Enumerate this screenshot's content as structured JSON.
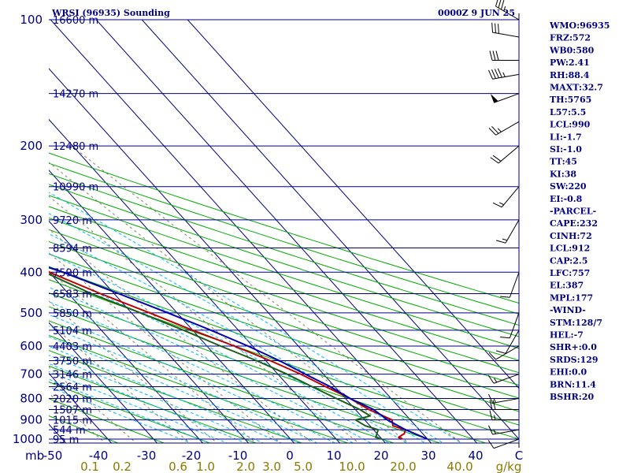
{
  "header": {
    "station": "WRSI (96935) Sounding",
    "time": "0000Z  9 JUN 25"
  },
  "chart_data": {
    "type": "skew-t log-p",
    "pressure_unit_label": "mb",
    "mixing_ratio_unit_label": "g/kg",
    "pressure_ticks": [
      100,
      200,
      300,
      400,
      500,
      600,
      700,
      800,
      900,
      1000
    ],
    "temperature_ticks": [
      -50,
      -40,
      -30,
      -20,
      -10,
      0,
      10,
      20,
      30,
      40,
      "C"
    ],
    "mixing_ratio_ticks": [
      "0.1",
      "0.2",
      "0.6",
      "1.0",
      "2.0",
      "3.0",
      "5.0",
      "10.0",
      "20.0",
      "40.0"
    ],
    "height_levels": [
      {
        "p": 100,
        "label": "16600 m"
      },
      {
        "p": 150,
        "label": "14270 m"
      },
      {
        "p": 200,
        "label": "12480 m"
      },
      {
        "p": 250,
        "label": "10990 m"
      },
      {
        "p": 300,
        "label": "9720 m"
      },
      {
        "p": 350,
        "label": "8594 m"
      },
      {
        "p": 400,
        "label": "7590 m"
      },
      {
        "p": 450,
        "label": "6583 m"
      },
      {
        "p": 500,
        "label": "5850 m"
      },
      {
        "p": 550,
        "label": "5104 m"
      },
      {
        "p": 600,
        "label": "4403 m"
      },
      {
        "p": 650,
        "label": "3750 m"
      },
      {
        "p": 700,
        "label": "3146 m"
      },
      {
        "p": 750,
        "label": "2564 m"
      },
      {
        "p": 800,
        "label": "2020 m"
      },
      {
        "p": 850,
        "label": "1507 m"
      },
      {
        "p": 900,
        "label": "1015 m"
      },
      {
        "p": 950,
        "label": "544 m"
      },
      {
        "p": 1000,
        "label": "95 m"
      }
    ],
    "series": [
      {
        "color": "#c00000",
        "points": [
          [
            100,
            -77
          ],
          [
            110,
            -78
          ],
          [
            117,
            -80
          ],
          [
            130,
            -79
          ],
          [
            150,
            -73
          ],
          [
            200,
            -60
          ],
          [
            250,
            -48
          ],
          [
            300,
            -37
          ],
          [
            350,
            -28
          ],
          [
            400,
            -20
          ],
          [
            450,
            -13
          ],
          [
            500,
            -6
          ],
          [
            550,
            0
          ],
          [
            600,
            6
          ],
          [
            650,
            11
          ],
          [
            700,
            15
          ],
          [
            750,
            18
          ],
          [
            800,
            21
          ],
          [
            850,
            23
          ],
          [
            900,
            26
          ],
          [
            930,
            25
          ],
          [
            950,
            27
          ],
          [
            970,
            26
          ],
          [
            990,
            24
          ],
          [
            1000,
            24.5
          ]
        ]
      },
      {
        "color": "#1a5e1a",
        "points": [
          [
            100,
            -81
          ],
          [
            110,
            -85
          ],
          [
            117,
            -88
          ],
          [
            130,
            -88
          ],
          [
            150,
            -85
          ],
          [
            200,
            -67
          ],
          [
            215,
            -64
          ],
          [
            250,
            -53
          ],
          [
            270,
            -49
          ],
          [
            300,
            -44
          ],
          [
            320,
            -44
          ],
          [
            350,
            -36
          ],
          [
            400,
            -21
          ],
          [
            450,
            -15
          ],
          [
            500,
            -8
          ],
          [
            550,
            -2
          ],
          [
            600,
            3
          ],
          [
            650,
            8
          ],
          [
            700,
            12
          ],
          [
            750,
            15
          ],
          [
            800,
            18
          ],
          [
            850,
            21
          ],
          [
            880,
            22
          ],
          [
            900,
            18
          ],
          [
            930,
            19
          ],
          [
            950,
            21
          ],
          [
            970,
            20
          ],
          [
            990,
            19
          ],
          [
            1000,
            20
          ]
        ]
      },
      {
        "color": "#0000b0",
        "points": [
          [
            100,
            -93
          ],
          [
            150,
            -75
          ],
          [
            200,
            -59
          ],
          [
            250,
            -50
          ],
          [
            300,
            -39
          ],
          [
            350,
            -28
          ],
          [
            400,
            -17
          ],
          [
            450,
            -9
          ],
          [
            500,
            -2
          ],
          [
            550,
            4
          ],
          [
            600,
            9
          ],
          [
            650,
            13
          ],
          [
            700,
            16
          ],
          [
            750,
            19
          ],
          [
            800,
            21
          ],
          [
            850,
            24
          ],
          [
            900,
            25
          ],
          [
            950,
            27
          ],
          [
            1000,
            30
          ]
        ]
      }
    ],
    "wind_barbs": [
      {
        "p": 100,
        "dir": 300,
        "spd": 35
      },
      {
        "p": 110,
        "dir": 280,
        "spd": 30
      },
      {
        "p": 125,
        "dir": 270,
        "spd": 30
      },
      {
        "p": 135,
        "dir": 260,
        "spd": 45
      },
      {
        "p": 150,
        "dir": 250,
        "spd": 50
      },
      {
        "p": 175,
        "dir": 240,
        "spd": 25
      },
      {
        "p": 200,
        "dir": 230,
        "spd": 20
      },
      {
        "p": 250,
        "dir": 220,
        "spd": 15
      },
      {
        "p": 300,
        "dir": 210,
        "spd": 15
      },
      {
        "p": 400,
        "dir": 200,
        "spd": 10
      },
      {
        "p": 500,
        "dir": 200,
        "spd": 10
      },
      {
        "p": 550,
        "dir": 210,
        "spd": 10
      },
      {
        "p": 600,
        "dir": 240,
        "spd": 10
      },
      {
        "p": 700,
        "dir": 250,
        "spd": 15
      },
      {
        "p": 800,
        "dir": 260,
        "spd": 15
      },
      {
        "p": 850,
        "dir": 270,
        "spd": 20
      },
      {
        "p": 900,
        "dir": 270,
        "spd": 15
      },
      {
        "p": 950,
        "dir": 260,
        "spd": 15
      },
      {
        "p": 1000,
        "dir": 250,
        "spd": 10
      }
    ]
  },
  "indices": [
    "WMO:96935",
    "FRZ:572",
    "WB0:580",
    "PW:2.41",
    "RH:88.4",
    "MAXT:32.7",
    "TH:5765",
    "L57:5.5",
    "LCL:990",
    "LI:-1.7",
    "SI:-1.0",
    "TT:45",
    "KI:38",
    "SW:220",
    "EI:-0.8",
    "-PARCEL-",
    "CAPE:232",
    "CINH:72",
    "LCL:912",
    "CAP:2.5",
    "LFC:757",
    "EL:387",
    "MPL:177",
    "-WIND-",
    "STM:128/7",
    "HEL:-7",
    "SHR+:0.0",
    "SRDS:129",
    "EHI:0.0",
    "BRN:11.4",
    "BSHR:20"
  ],
  "colors": {
    "isobar": "#000080",
    "isotherm": "#000080",
    "dry_adiabat": "#00aa00",
    "moist_adiabat": "#00bbff",
    "mixing_ratio": "#808060",
    "frame": "#000080"
  }
}
